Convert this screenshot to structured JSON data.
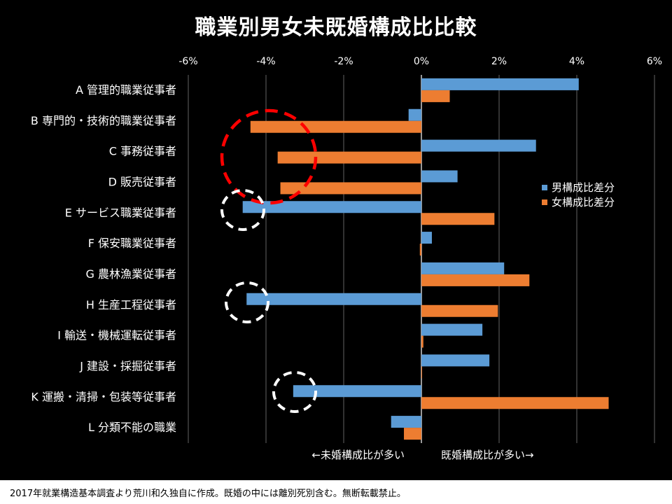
{
  "chart_data": {
    "type": "bar",
    "orientation": "horizontal",
    "title": "職業別男女未既婚構成比比較",
    "x_tick_labels": [
      "-6%",
      "-4%",
      "-2%",
      "0%",
      "2%",
      "4%",
      "6%"
    ],
    "xlim": [
      -6,
      6
    ],
    "x_unit": "%",
    "grid": true,
    "legend_position": "right",
    "categories": [
      "A 管理的職業従事者",
      "B 専門的・技術的職業従事者",
      "C 事務従事者",
      "D 販売従事者",
      "E サービス職業従事者",
      "F 保安職業従事者",
      "G 農林漁業従事者",
      "H 生産工程従事者",
      "I 輸送・機械運転従事者",
      "J 建設・採掘従事者",
      "K 運搬・清掃・包装等従事者",
      "L 分類不能の職業"
    ],
    "series": [
      {
        "name": "男構成比差分",
        "color": "#5b9bd5",
        "values": [
          4.05,
          -0.33,
          2.95,
          0.93,
          -4.6,
          0.27,
          2.13,
          -4.5,
          1.57,
          1.75,
          -3.3,
          -0.78
        ]
      },
      {
        "name": "女構成比差分",
        "color": "#ed7d31",
        "values": [
          0.73,
          -4.4,
          -3.7,
          -3.63,
          1.88,
          -0.04,
          2.78,
          1.97,
          0.05,
          0.0,
          4.82,
          -0.45
        ]
      }
    ],
    "annotations": {
      "left_arrow_text": "←未婚構成比が多い",
      "right_arrow_text": "既婚構成比が多い→"
    },
    "highlight_circles": [
      {
        "color": "#ff0000",
        "style": "dashed",
        "around": "B 専門的・技術的職業従事者 / C 事務従事者 / D 販売従事者 (女構成比差分)"
      },
      {
        "color": "#ffffff",
        "style": "dashed",
        "around": "E サービス職業従事者 (男構成比差分)"
      },
      {
        "color": "#ffffff",
        "style": "dashed",
        "around": "H 生産工程従事者 (男構成比差分)"
      },
      {
        "color": "#ffffff",
        "style": "dashed",
        "around": "K 運搬・清掃・包装等従事者 (男構成比差分)"
      }
    ]
  },
  "footer": {
    "note": "2017年就業構造基本調査より荒川和久独自に作成。既婚の中には離別死別含む。無断転載禁止。"
  }
}
